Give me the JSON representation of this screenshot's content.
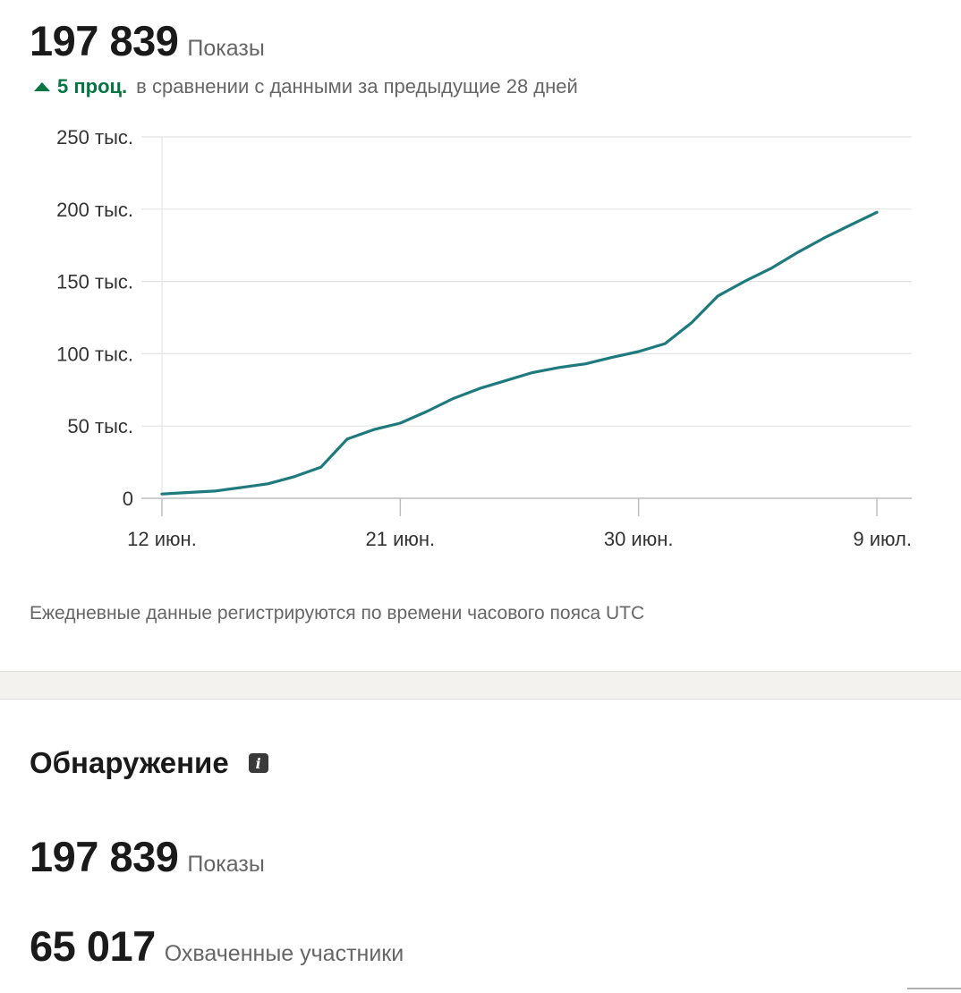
{
  "header": {
    "value": "197 839",
    "label": "Показы",
    "delta_value": "5 проц.",
    "delta_text": "в сравнении с данными за предыдущие 28 дней",
    "delta_direction": "up",
    "delta_color": "#057642"
  },
  "chart_data": {
    "type": "line",
    "line_color": "#1e7a7c",
    "grid": true,
    "ylim": [
      0,
      250000
    ],
    "y_ticks": [
      {
        "value": 0,
        "label": "0"
      },
      {
        "value": 50000,
        "label": "50 тыс."
      },
      {
        "value": 100000,
        "label": "100 тыс."
      },
      {
        "value": 150000,
        "label": "150 тыс."
      },
      {
        "value": 200000,
        "label": "200 тыс."
      },
      {
        "value": 250000,
        "label": "250 тыс."
      }
    ],
    "x_ticks": [
      {
        "label": "12 июн.",
        "date": "2024-06-12"
      },
      {
        "label": "21 июн.",
        "date": "2024-06-21"
      },
      {
        "label": "30 июн.",
        "date": "2024-06-30"
      },
      {
        "label": "9 июл.",
        "date": "2024-07-09"
      }
    ],
    "series": [
      {
        "x": [
          "2024-06-12",
          "2024-06-13",
          "2024-06-14",
          "2024-06-15",
          "2024-06-16",
          "2024-06-17",
          "2024-06-18",
          "2024-06-19",
          "2024-06-20",
          "2024-06-21",
          "2024-06-22",
          "2024-06-23",
          "2024-06-24",
          "2024-06-25",
          "2024-06-26",
          "2024-06-27",
          "2024-06-28",
          "2024-06-29",
          "2024-06-30",
          "2024-07-01",
          "2024-07-02",
          "2024-07-03",
          "2024-07-04",
          "2024-07-05",
          "2024-07-06",
          "2024-07-07",
          "2024-07-08",
          "2024-07-09"
        ],
        "values": [
          3000,
          4000,
          5000,
          7500,
          10000,
          15000,
          21500,
          41000,
          47500,
          52000,
          60000,
          69000,
          76000,
          81500,
          87000,
          90500,
          93000,
          97500,
          101500,
          107000,
          121500,
          140000,
          150000,
          159000,
          170000,
          180000,
          189000,
          197839
        ]
      }
    ]
  },
  "footnote": "Ежедневные данные регистрируются по времени часового пояса UTC",
  "discovery": {
    "title": "Обнаружение",
    "info_icon": "info-icon",
    "metrics": [
      {
        "value": "197 839",
        "label": "Показы"
      },
      {
        "value": "65 017",
        "label": "Охваченные участники"
      }
    ]
  }
}
